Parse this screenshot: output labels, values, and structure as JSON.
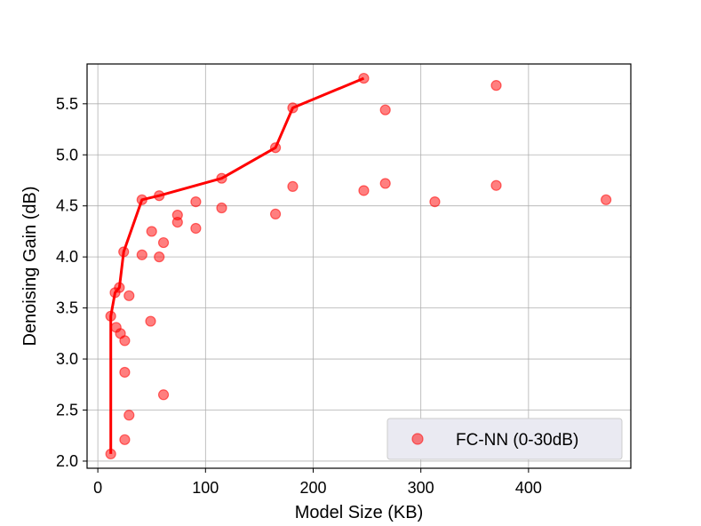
{
  "chart_data": {
    "type": "scatter",
    "title": "",
    "xlabel": "Model Size (KB)",
    "ylabel": "Denoising Gain (dB)",
    "xlim": [
      -10,
      495
    ],
    "ylim": [
      1.93,
      5.89
    ],
    "xticks": [
      0,
      100,
      200,
      300,
      400
    ],
    "yticks": [
      2.0,
      2.5,
      3.0,
      3.5,
      4.0,
      4.5,
      5.0,
      5.5
    ],
    "xtick_labels": [
      "0",
      "100",
      "200",
      "300",
      "400"
    ],
    "ytick_labels": [
      "2.0",
      "2.5",
      "3.0",
      "3.5",
      "4.0",
      "4.5",
      "5.0",
      "5.5"
    ],
    "grid": true,
    "legend_position": "lower-right",
    "series": [
      {
        "name": "FC-NN (0-30dB)",
        "kind": "scatter",
        "color": "#ff0000",
        "points": [
          [
            12,
            2.07
          ],
          [
            12,
            3.42
          ],
          [
            16,
            3.65
          ],
          [
            17,
            3.31
          ],
          [
            20,
            3.7
          ],
          [
            21,
            3.25
          ],
          [
            24,
            4.05
          ],
          [
            25,
            3.18
          ],
          [
            25,
            2.87
          ],
          [
            25,
            2.21
          ],
          [
            29,
            3.62
          ],
          [
            29,
            2.45
          ],
          [
            41,
            4.56
          ],
          [
            41,
            4.02
          ],
          [
            49,
            3.37
          ],
          [
            50,
            4.25
          ],
          [
            57,
            4.6
          ],
          [
            57,
            4.0
          ],
          [
            61,
            4.14
          ],
          [
            61,
            2.65
          ],
          [
            74,
            4.41
          ],
          [
            74,
            4.34
          ],
          [
            91,
            4.54
          ],
          [
            91,
            4.28
          ],
          [
            115,
            4.77
          ],
          [
            115,
            4.48
          ],
          [
            165,
            5.07
          ],
          [
            165,
            4.42
          ],
          [
            181,
            5.46
          ],
          [
            181,
            4.69
          ],
          [
            247,
            5.75
          ],
          [
            247,
            4.65
          ],
          [
            267,
            5.44
          ],
          [
            267,
            4.72
          ],
          [
            313,
            4.54
          ],
          [
            370,
            5.68
          ],
          [
            370,
            4.7
          ],
          [
            472,
            4.56
          ]
        ]
      },
      {
        "kind": "line",
        "color": "#ff0000",
        "points": [
          [
            12,
            2.07
          ],
          [
            12,
            3.42
          ],
          [
            16,
            3.65
          ],
          [
            20,
            3.7
          ],
          [
            24,
            4.05
          ],
          [
            41,
            4.56
          ],
          [
            57,
            4.6
          ],
          [
            115,
            4.77
          ],
          [
            165,
            5.07
          ],
          [
            181,
            5.46
          ],
          [
            247,
            5.75
          ]
        ]
      }
    ]
  }
}
